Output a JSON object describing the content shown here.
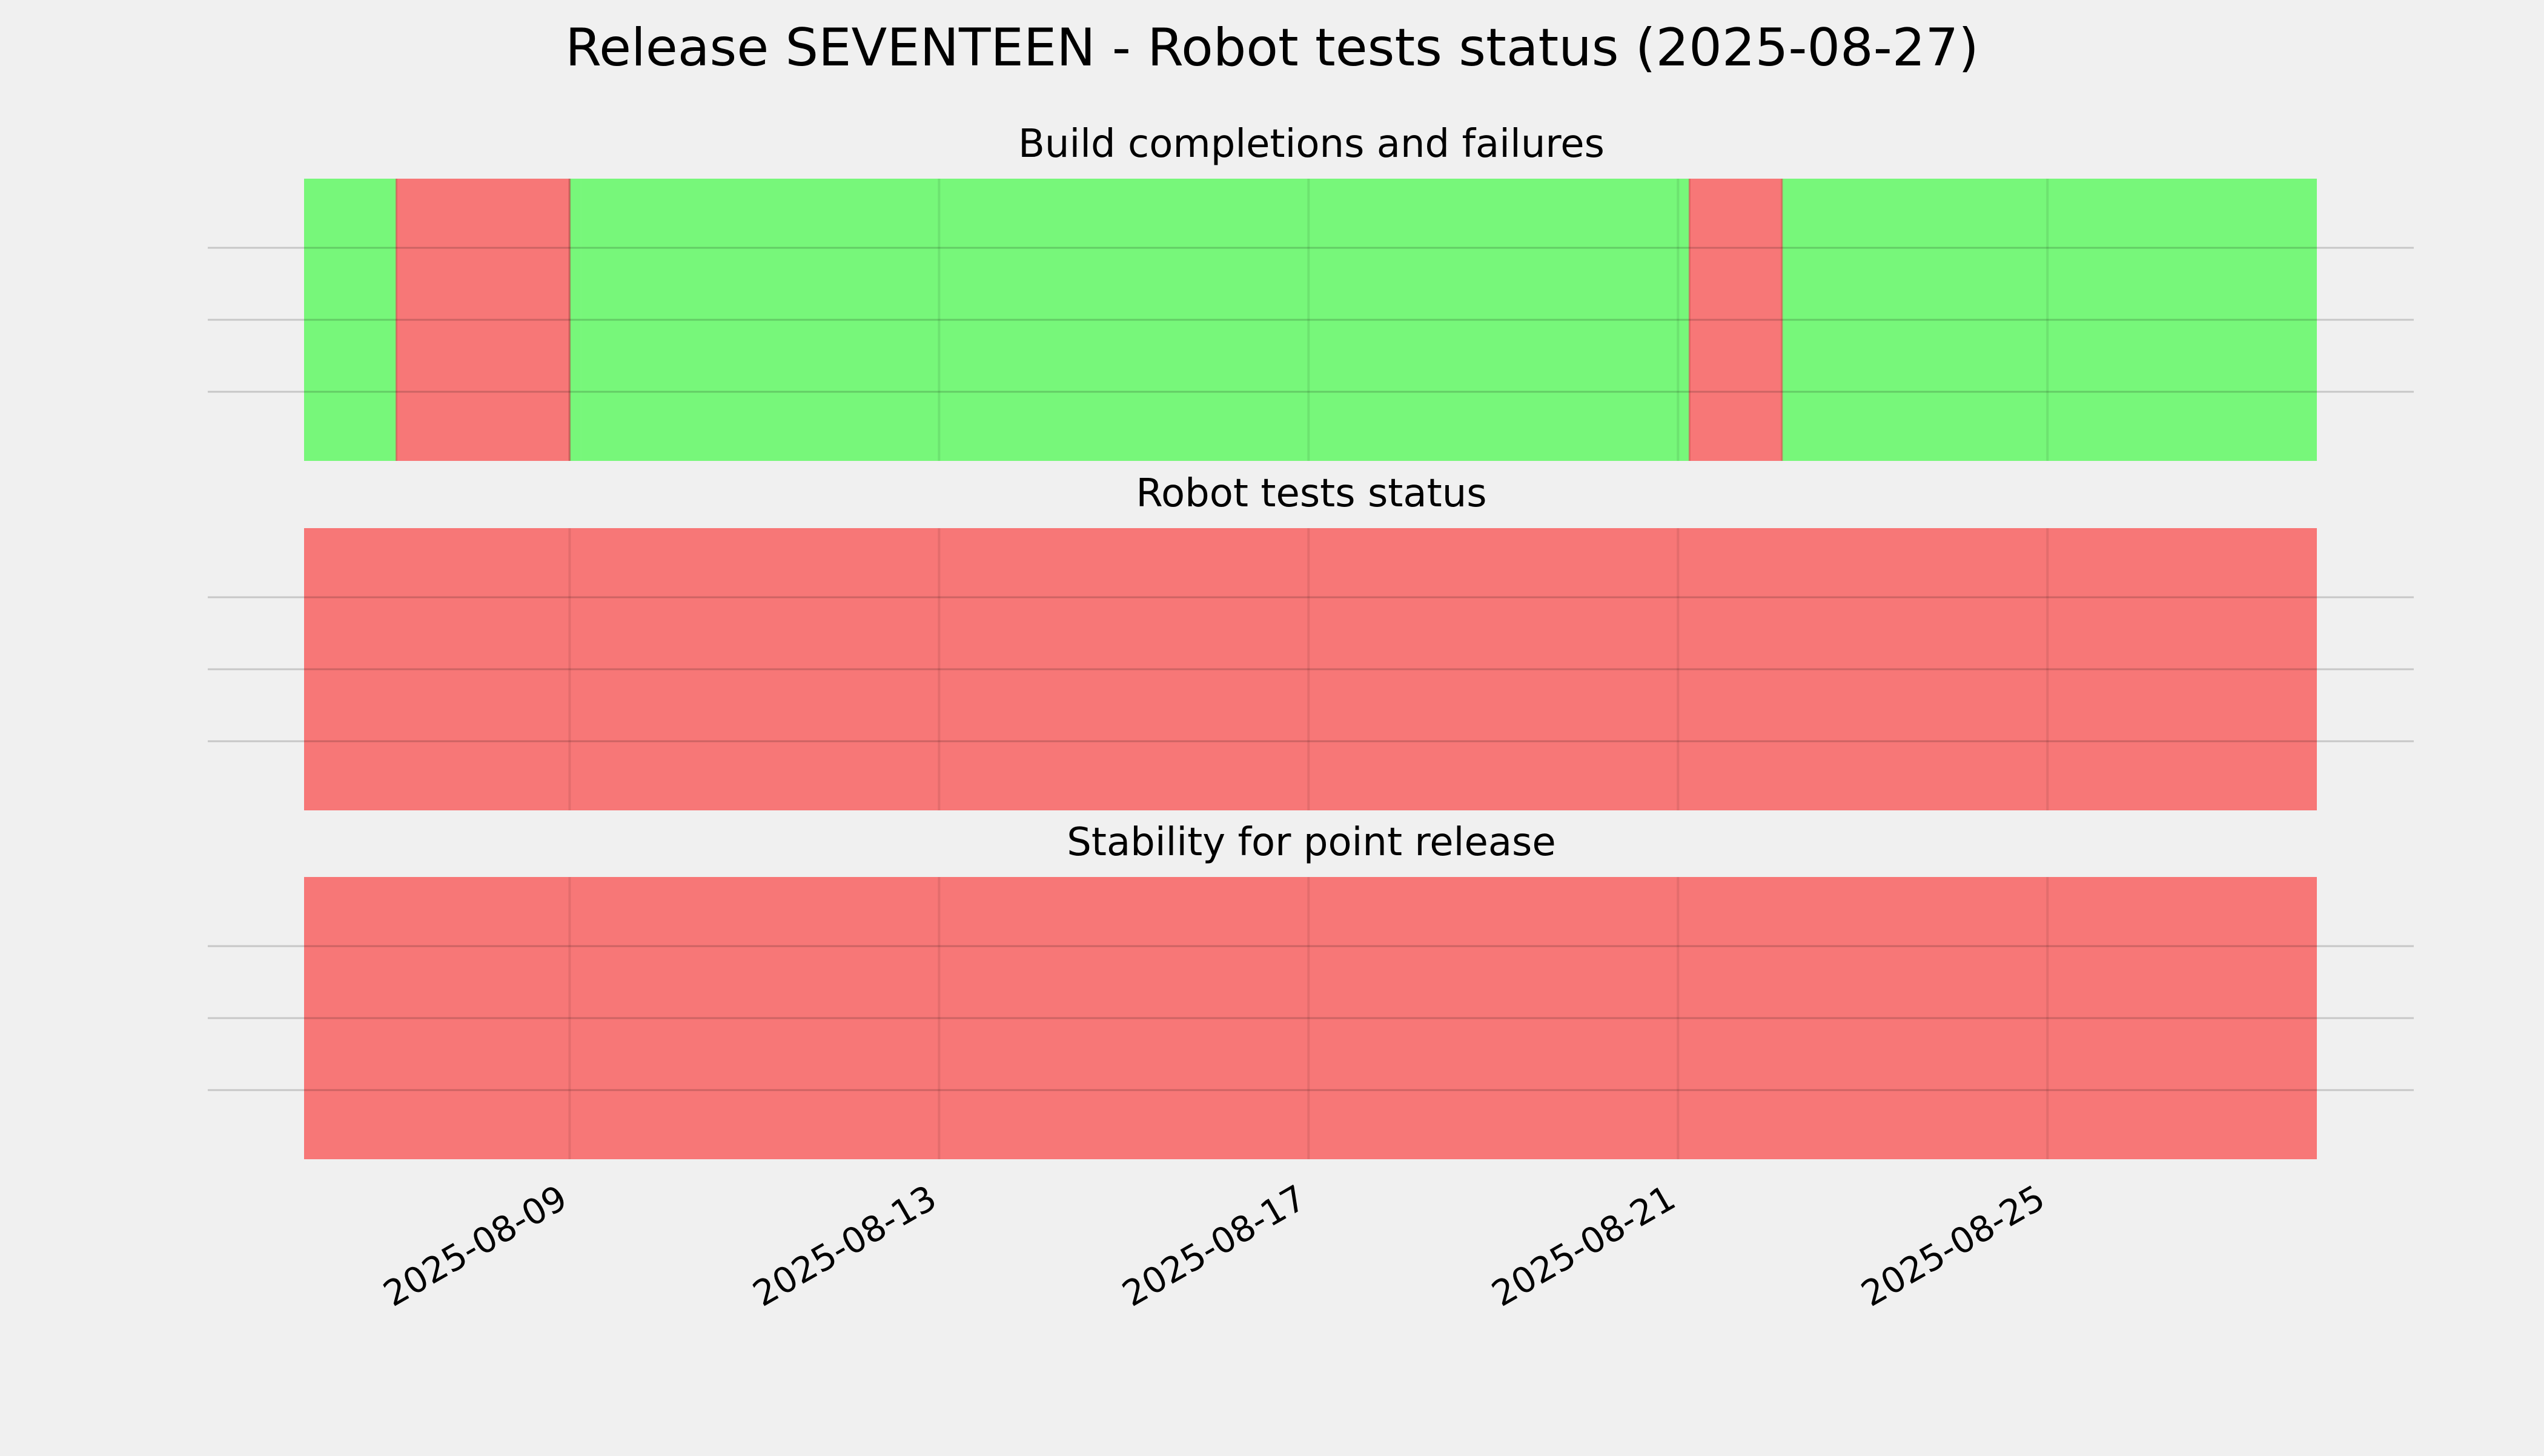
{
  "page": {
    "title": "Release SEVENTEEN - Robot tests status (2025-08-27)",
    "background": "#f0f0f0"
  },
  "colors": {
    "pass": "#77f77a",
    "fail": "#f77777",
    "hline": "#c9c9c9"
  },
  "chart_data": {
    "type": "timeline",
    "title": "Release SEVENTEEN - Robot tests status (2025-08-27)",
    "x_type": "date",
    "xlim": [
      "2025-08-06T03:00",
      "2025-08-27T22:00"
    ],
    "xticks": [
      "2025-08-09",
      "2025-08-13",
      "2025-08-17",
      "2025-08-21",
      "2025-08-25"
    ],
    "grid": true,
    "panels": [
      {
        "title": "Build completions and failures",
        "segments": [
          {
            "start": "2025-08-06T03:00",
            "end": "2025-08-07T03:00",
            "status": "pass"
          },
          {
            "start": "2025-08-07T03:00",
            "end": "2025-08-09T00:00",
            "status": "fail"
          },
          {
            "start": "2025-08-09T00:00",
            "end": "2025-08-09T03:00",
            "status": "pass"
          },
          {
            "start": "2025-08-09T03:00",
            "end": "2025-08-21T03:00",
            "status": "pass"
          },
          {
            "start": "2025-08-21T03:00",
            "end": "2025-08-22T03:00",
            "status": "fail"
          },
          {
            "start": "2025-08-22T03:00",
            "end": "2025-08-27T22:00",
            "status": "pass"
          }
        ]
      },
      {
        "title": "Robot tests status",
        "segments": [
          {
            "start": "2025-08-06T03:00",
            "end": "2025-08-27T22:00",
            "status": "fail"
          }
        ]
      },
      {
        "title": "Stability for point release",
        "segments": [
          {
            "start": "2025-08-06T03:00",
            "end": "2025-08-27T22:00",
            "status": "fail"
          }
        ]
      }
    ]
  }
}
